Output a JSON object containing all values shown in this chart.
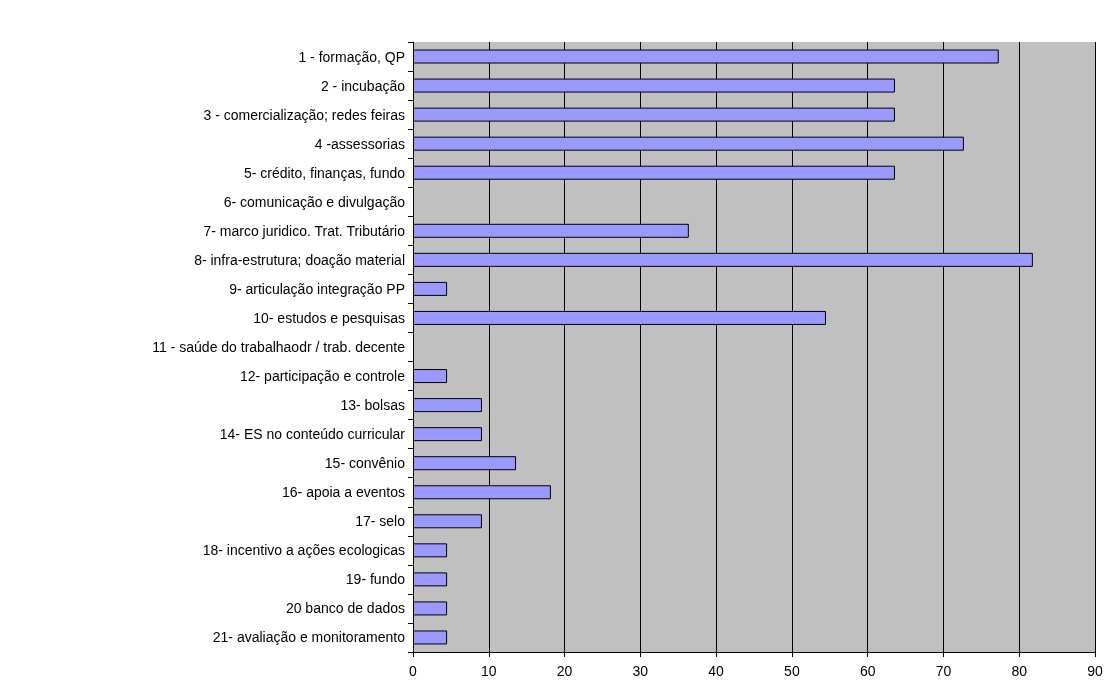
{
  "chart_data": {
    "type": "bar",
    "orientation": "horizontal",
    "categories": [
      "1 - formação, QP",
      "2 - incubação",
      "3 - comercialização; redes feiras",
      "4 -assessorias",
      "5- crédito, finanças, fundo",
      "6- comunicação e divulgação",
      "7- marco juridico. Trat. Tributário",
      "8- infra-estrutura; doação material",
      "9- articulação integração PP",
      "10- estudos e pesquisas",
      "11 - saúde do trabalhaodr / trab. decente",
      "12- participação e controle",
      "13- bolsas",
      "14- ES no conteúdo curricular",
      "15- convênio",
      "16- apoia a eventos",
      "17- selo",
      "18- incentivo a ações ecologicas",
      "19- fundo",
      "20 banco de dados",
      "21- avaliação e monitoramento"
    ],
    "values": [
      77.3,
      63.6,
      63.6,
      72.7,
      63.6,
      null,
      36.4,
      81.8,
      4.5,
      54.5,
      null,
      4.5,
      9.1,
      9.1,
      13.6,
      18.2,
      9.1,
      4.5,
      4.5,
      4.5,
      4.5
    ],
    "color": "#9999ff",
    "xlim": [
      0,
      90
    ],
    "xticks": [
      0,
      10,
      20,
      30,
      40,
      50,
      60,
      70,
      80,
      90
    ],
    "grid": "x"
  }
}
